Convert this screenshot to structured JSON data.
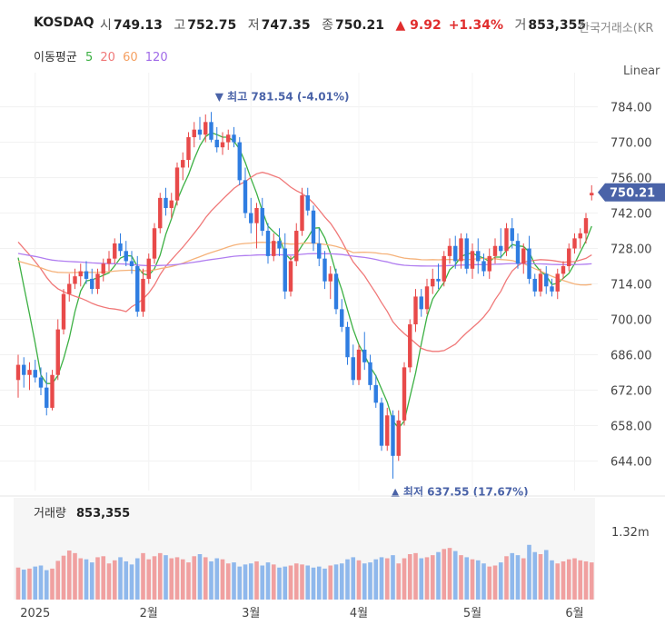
{
  "header": {
    "symbol": "KOSDAQ",
    "open_label": "시",
    "open": "749.13",
    "high_label": "고",
    "high": "752.75",
    "low_label": "저",
    "low": "747.35",
    "close_label": "종",
    "close": "750.21",
    "change": "▲ 9.92",
    "change_pct": "+1.34%",
    "volume_label": "거",
    "volume": "853,355",
    "exchange": "한국거래소(KR",
    "ma_label": "이동평균",
    "ma_periods": [
      "5",
      "20",
      "60",
      "120"
    ],
    "scale_mode": "Linear"
  },
  "colors": {
    "up": "#e84a4a",
    "down": "#2f7de1",
    "ma5": "#3cb043",
    "ma20": "#f07878",
    "ma60": "#f5b27a",
    "ma120": "#b07df0",
    "vol_up": "#f0a0a0",
    "vol_down": "#8fb8ec",
    "last_price_bg": "#4a63a8",
    "annotation": "#4a63a8"
  },
  "chart_data": {
    "type": "candlestick",
    "price_axis": {
      "ticks": [
        "784.00",
        "770.00",
        "756.00",
        "742.00",
        "728.00",
        "714.00",
        "700.00",
        "686.00",
        "672.00",
        "658.00",
        "644.00"
      ],
      "ylim": [
        633,
        795
      ]
    },
    "time_axis": {
      "labels": [
        "2025",
        "2월",
        "3월",
        "4월",
        "5월",
        "6월"
      ],
      "label_day_index": [
        3,
        23,
        41,
        60,
        80,
        98
      ]
    },
    "last_price": "750.21",
    "annotations": {
      "high": {
        "text": "▼ 최고 781.54 (-4.01%)",
        "value": 781.54,
        "day_index": 35
      },
      "low": {
        "text": "▲ 최저 637.55 (17.67%)",
        "value": 637.55,
        "day_index": 66
      }
    },
    "volume_panel": {
      "label": "거래량",
      "value": "853,355",
      "axis_tick": "1.32m",
      "axis_tick_value": 1.32
    },
    "ohlc": [
      [
        676,
        686,
        669,
        682
      ],
      [
        682,
        685,
        673,
        678
      ],
      [
        678,
        683,
        672,
        680
      ],
      [
        680,
        684,
        675,
        677
      ],
      [
        677,
        681,
        670,
        673
      ],
      [
        673,
        679,
        662,
        665
      ],
      [
        665,
        680,
        664,
        678
      ],
      [
        678,
        700,
        676,
        696
      ],
      [
        696,
        712,
        694,
        710
      ],
      [
        710,
        718,
        707,
        714
      ],
      [
        714,
        720,
        712,
        717
      ],
      [
        717,
        722,
        713,
        719
      ],
      [
        719,
        723,
        714,
        716
      ],
      [
        716,
        720,
        710,
        712
      ],
      [
        712,
        720,
        710,
        718
      ],
      [
        718,
        724,
        715,
        722
      ],
      [
        722,
        727,
        719,
        724
      ],
      [
        724,
        732,
        722,
        730
      ],
      [
        730,
        734,
        725,
        727
      ],
      [
        727,
        731,
        721,
        723
      ],
      [
        723,
        727,
        718,
        721
      ],
      [
        721,
        725,
        701,
        703
      ],
      [
        703,
        720,
        701,
        716
      ],
      [
        716,
        726,
        714,
        724
      ],
      [
        724,
        738,
        722,
        736
      ],
      [
        736,
        750,
        734,
        748
      ],
      [
        748,
        752,
        741,
        744
      ],
      [
        744,
        750,
        740,
        747
      ],
      [
        747,
        762,
        745,
        760
      ],
      [
        760,
        766,
        755,
        763
      ],
      [
        763,
        774,
        760,
        772
      ],
      [
        772,
        778,
        768,
        775
      ],
      [
        775,
        780,
        771,
        773
      ],
      [
        773,
        781,
        770,
        778
      ],
      [
        778,
        782,
        770,
        771
      ],
      [
        771,
        776,
        766,
        768
      ],
      [
        768,
        774,
        765,
        770
      ],
      [
        770,
        775,
        767,
        773
      ],
      [
        773,
        776,
        768,
        770
      ],
      [
        770,
        772,
        753,
        755
      ],
      [
        755,
        760,
        740,
        742
      ],
      [
        742,
        748,
        734,
        738
      ],
      [
        738,
        746,
        728,
        744
      ],
      [
        744,
        748,
        733,
        735
      ],
      [
        735,
        738,
        722,
        725
      ],
      [
        725,
        734,
        723,
        731
      ],
      [
        731,
        736,
        725,
        728
      ],
      [
        728,
        734,
        708,
        711
      ],
      [
        711,
        725,
        709,
        723
      ],
      [
        723,
        738,
        721,
        735
      ],
      [
        735,
        752,
        733,
        749
      ],
      [
        749,
        752,
        741,
        743
      ],
      [
        743,
        745,
        727,
        730
      ],
      [
        730,
        736,
        721,
        724
      ],
      [
        724,
        727,
        712,
        715
      ],
      [
        715,
        721,
        708,
        718
      ],
      [
        718,
        720,
        702,
        704
      ],
      [
        704,
        708,
        695,
        697
      ],
      [
        697,
        699,
        682,
        685
      ],
      [
        685,
        690,
        674,
        676
      ],
      [
        676,
        690,
        674,
        688
      ],
      [
        688,
        695,
        680,
        683
      ],
      [
        683,
        686,
        672,
        674
      ],
      [
        674,
        678,
        665,
        667
      ],
      [
        667,
        669,
        648,
        650
      ],
      [
        650,
        665,
        648,
        662
      ],
      [
        662,
        664,
        637,
        646
      ],
      [
        646,
        664,
        644,
        660
      ],
      [
        660,
        683,
        658,
        681
      ],
      [
        681,
        700,
        679,
        698
      ],
      [
        698,
        712,
        695,
        709
      ],
      [
        709,
        712,
        701,
        704
      ],
      [
        704,
        716,
        702,
        713
      ],
      [
        713,
        720,
        710,
        716
      ],
      [
        716,
        722,
        712,
        715
      ],
      [
        715,
        727,
        713,
        725
      ],
      [
        725,
        732,
        722,
        729
      ],
      [
        729,
        733,
        720,
        723
      ],
      [
        723,
        734,
        720,
        732
      ],
      [
        732,
        734,
        718,
        720
      ],
      [
        720,
        730,
        716,
        727
      ],
      [
        727,
        732,
        718,
        723
      ],
      [
        723,
        726,
        717,
        719
      ],
      [
        719,
        728,
        716,
        725
      ],
      [
        725,
        732,
        722,
        729
      ],
      [
        729,
        736,
        724,
        727
      ],
      [
        727,
        738,
        725,
        736
      ],
      [
        736,
        740,
        728,
        731
      ],
      [
        731,
        734,
        720,
        722
      ],
      [
        722,
        730,
        718,
        728
      ],
      [
        728,
        733,
        714,
        716
      ],
      [
        716,
        718,
        709,
        711
      ],
      [
        711,
        720,
        709,
        718
      ],
      [
        718,
        721,
        710,
        713
      ],
      [
        713,
        716,
        709,
        711
      ],
      [
        711,
        720,
        708,
        718
      ],
      [
        718,
        723,
        716,
        721
      ],
      [
        721,
        730,
        719,
        728
      ],
      [
        728,
        734,
        726,
        732
      ],
      [
        732,
        736,
        728,
        734
      ],
      [
        734,
        742,
        730,
        740
      ],
      [
        749,
        753,
        747,
        750
      ]
    ],
    "volume": [
      0.62,
      0.58,
      0.6,
      0.64,
      0.66,
      0.57,
      0.6,
      0.75,
      0.85,
      0.95,
      0.9,
      0.8,
      0.78,
      0.72,
      0.82,
      0.84,
      0.7,
      0.76,
      0.82,
      0.74,
      0.68,
      0.8,
      0.9,
      0.78,
      0.84,
      0.9,
      0.86,
      0.8,
      0.82,
      0.78,
      0.72,
      0.84,
      0.88,
      0.82,
      0.74,
      0.8,
      0.78,
      0.7,
      0.72,
      0.64,
      0.68,
      0.7,
      0.74,
      0.66,
      0.72,
      0.68,
      0.62,
      0.64,
      0.66,
      0.7,
      0.68,
      0.66,
      0.62,
      0.64,
      0.6,
      0.66,
      0.68,
      0.7,
      0.78,
      0.82,
      0.76,
      0.7,
      0.72,
      0.78,
      0.82,
      0.8,
      0.86,
      0.7,
      0.8,
      0.88,
      0.9,
      0.8,
      0.82,
      0.86,
      0.92,
      0.98,
      1.0,
      0.94,
      0.86,
      0.82,
      0.78,
      0.76,
      0.7,
      0.64,
      0.66,
      0.72,
      0.84,
      0.9,
      0.86,
      0.8,
      1.06,
      0.92,
      0.88,
      0.96,
      0.76,
      0.7,
      0.74,
      0.78,
      0.8,
      0.76,
      0.74,
      0.72
    ]
  }
}
